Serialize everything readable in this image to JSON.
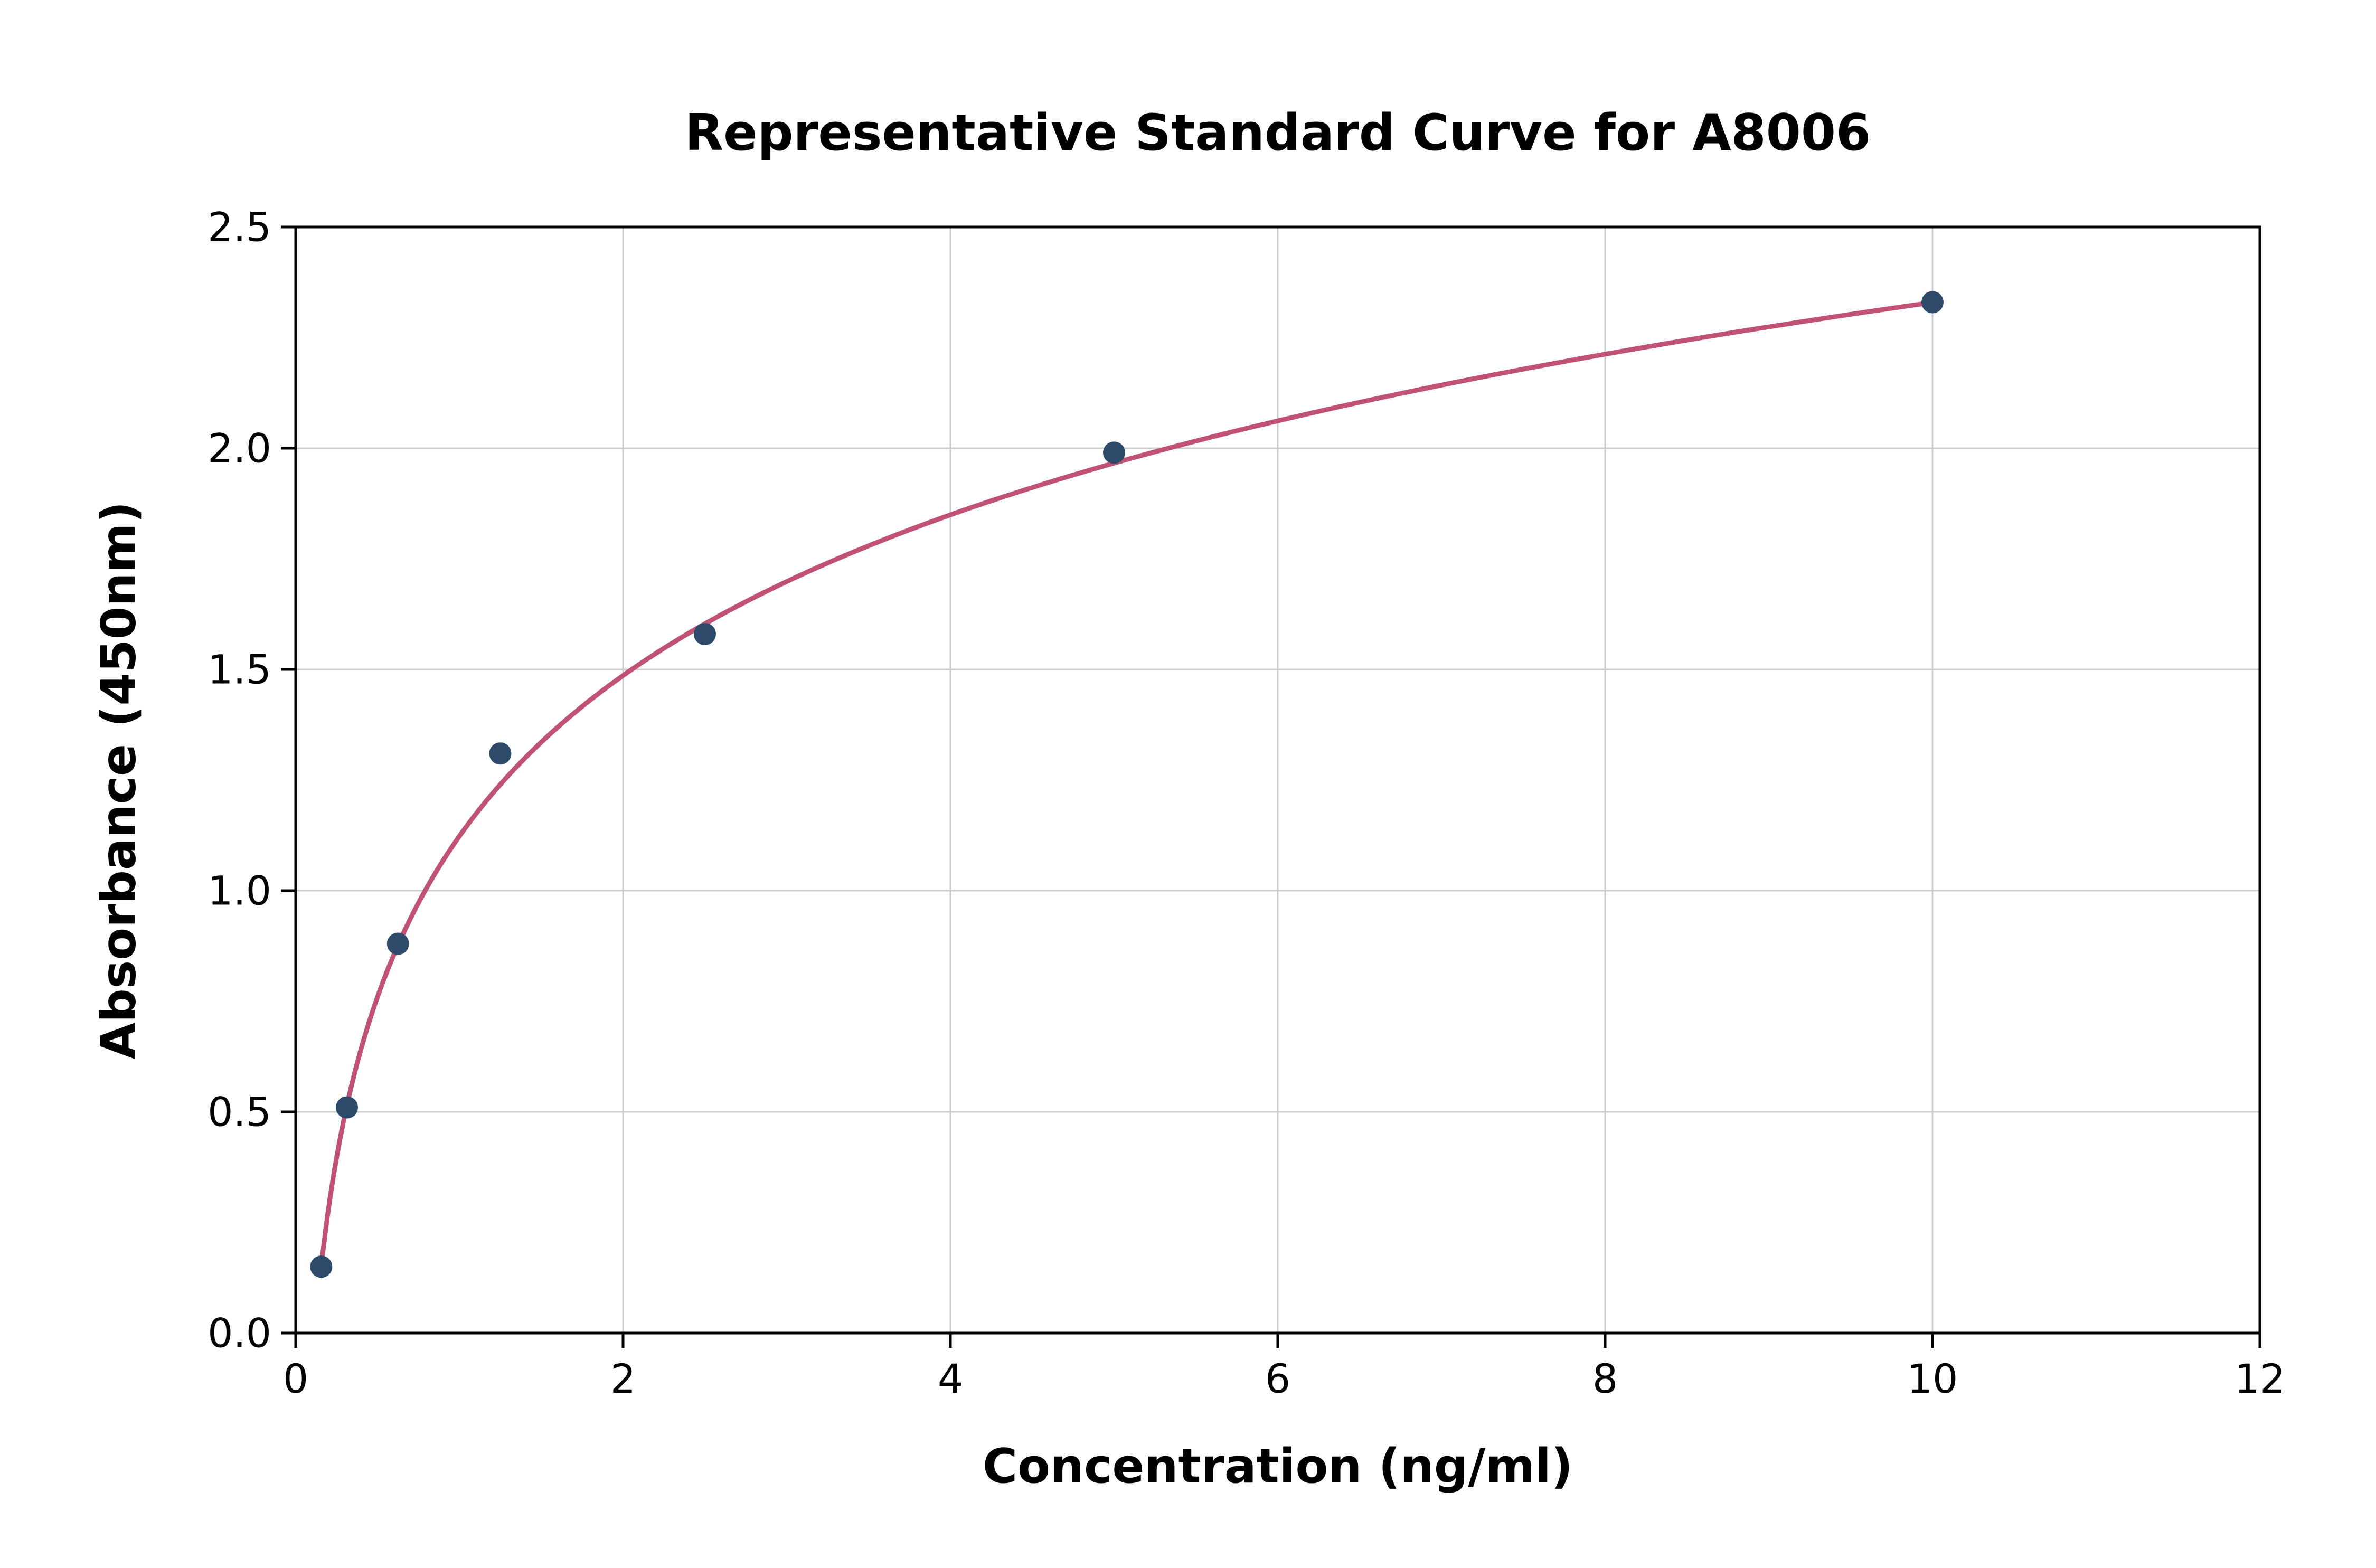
{
  "chart_data": {
    "type": "scatter",
    "title": "Representative Standard Curve for A8006",
    "xlabel": "Concentration (ng/ml)",
    "ylabel": "Absorbance (450nm)",
    "xlim": [
      0,
      12
    ],
    "ylim": [
      0,
      2.5
    ],
    "x_tick_values": [
      0,
      2,
      4,
      6,
      8,
      10,
      12
    ],
    "x_tick_labels": [
      "0",
      "2",
      "4",
      "6",
      "8",
      "10",
      "12"
    ],
    "y_tick_values": [
      0,
      0.5,
      1.0,
      1.5,
      2.0,
      2.5
    ],
    "y_tick_labels": [
      "0.0",
      "0.5",
      "1.0",
      "1.5",
      "2.0",
      "2.5"
    ],
    "grid": true,
    "legend": "none",
    "points": {
      "x": [
        0.156,
        0.313,
        0.625,
        1.25,
        2.5,
        5,
        10
      ],
      "y": [
        0.15,
        0.51,
        0.88,
        1.31,
        1.58,
        1.99,
        2.33
      ]
    },
    "fit_curve": {
      "type": "logarithmic",
      "equation": "y = a + b*ln(x)",
      "a": 1.123,
      "b": 0.524,
      "x_start": 0.156,
      "x_end": 10
    },
    "colors": {
      "curve": "#c05273",
      "points": "#2e4a6b",
      "grid": "#cccccc",
      "frame": "#000000",
      "text": "#000000"
    }
  }
}
